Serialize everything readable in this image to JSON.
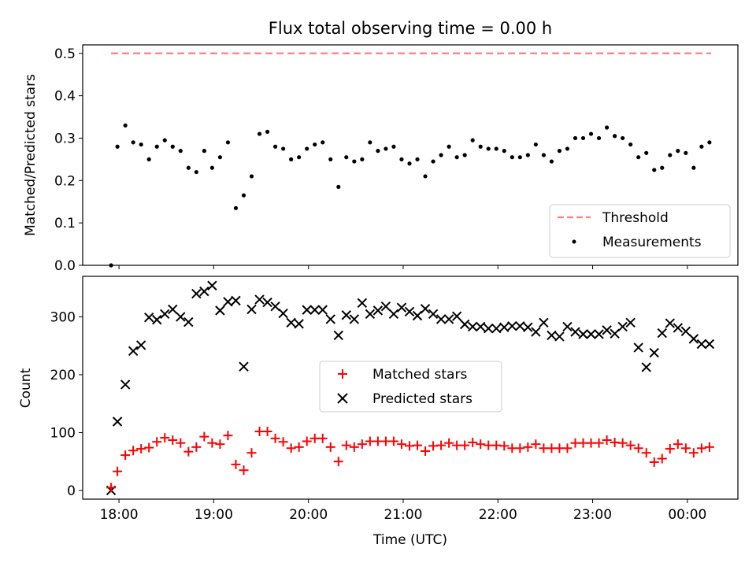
{
  "chart_data": [
    {
      "type": "scatter",
      "title": "Flux total observing time = 0.00 h",
      "xlabel": "",
      "ylabel": "Matched/Predicted stars",
      "xlim": [
        "17:37",
        "00:32"
      ],
      "ylim": [
        0,
        0.52
      ],
      "yticks": [
        0,
        0.1,
        0.2,
        0.3,
        0.4,
        0.5
      ],
      "ytick_labels": [
        "0.0",
        "0.1",
        "0.2",
        "0.3",
        "0.4",
        "0.5"
      ],
      "grid": false,
      "legend_position": "lower-right",
      "threshold": {
        "name": "Threshold",
        "value": 0.5,
        "x": [
          "17:55",
          "00:15"
        ],
        "color": "#ff7f7f"
      },
      "series": [
        {
          "name": "Measurements",
          "color": "#000000",
          "x": [
            "17:55",
            "17:59",
            "18:04",
            "18:09",
            "18:14",
            "18:19",
            "18:24",
            "18:29",
            "18:34",
            "18:39",
            "18:44",
            "18:49",
            "18:54",
            "18:59",
            "19:04",
            "19:09",
            "19:14",
            "19:19",
            "19:24",
            "19:29",
            "19:34",
            "19:39",
            "19:44",
            "19:49",
            "19:54",
            "19:59",
            "20:04",
            "20:09",
            "20:14",
            "20:19",
            "20:24",
            "20:29",
            "20:34",
            "20:39",
            "20:44",
            "20:49",
            "20:54",
            "20:59",
            "21:04",
            "21:09",
            "21:14",
            "21:19",
            "21:24",
            "21:29",
            "21:34",
            "21:39",
            "21:44",
            "21:49",
            "21:54",
            "21:59",
            "22:04",
            "22:09",
            "22:14",
            "22:19",
            "22:24",
            "22:29",
            "22:34",
            "22:39",
            "22:44",
            "22:49",
            "22:54",
            "22:59",
            "23:04",
            "23:09",
            "23:14",
            "23:19",
            "23:24",
            "23:29",
            "23:34",
            "23:39",
            "23:44",
            "23:49",
            "23:54",
            "23:59",
            "00:04",
            "00:09",
            "00:14"
          ],
          "y": [
            0.0,
            0.28,
            0.33,
            0.29,
            0.285,
            0.25,
            0.28,
            0.295,
            0.28,
            0.27,
            0.23,
            0.22,
            0.27,
            0.23,
            0.255,
            0.29,
            0.135,
            0.165,
            0.21,
            0.31,
            0.315,
            0.28,
            0.275,
            0.25,
            0.255,
            0.275,
            0.285,
            0.29,
            0.25,
            0.185,
            0.255,
            0.245,
            0.25,
            0.29,
            0.27,
            0.275,
            0.28,
            0.25,
            0.24,
            0.25,
            0.21,
            0.245,
            0.26,
            0.28,
            0.255,
            0.26,
            0.295,
            0.28,
            0.275,
            0.275,
            0.27,
            0.255,
            0.255,
            0.26,
            0.285,
            0.26,
            0.245,
            0.27,
            0.275,
            0.3,
            0.3,
            0.31,
            0.3,
            0.325,
            0.305,
            0.3,
            0.285,
            0.255,
            0.265,
            0.225,
            0.23,
            0.26,
            0.27,
            0.265,
            0.23,
            0.28,
            0.29
          ]
        }
      ]
    },
    {
      "type": "scatter",
      "title": "",
      "xlabel": "Time (UTC)",
      "ylabel": "Count",
      "xlim": [
        "17:37",
        "00:32"
      ],
      "ylim": [
        -15,
        370
      ],
      "yticks": [
        0,
        100,
        200,
        300
      ],
      "ytick_labels": [
        "0",
        "100",
        "200",
        "300"
      ],
      "xticks": [
        "18:00",
        "19:00",
        "20:00",
        "21:00",
        "22:00",
        "23:00",
        "00:00"
      ],
      "xtick_labels": [
        "18:00",
        "19:00",
        "20:00",
        "21:00",
        "22:00",
        "23:00",
        "00:00"
      ],
      "grid": false,
      "legend_position": "center",
      "series": [
        {
          "name": "Matched stars",
          "color": "#ff0000",
          "marker": "plus",
          "x": [
            "17:55",
            "17:59",
            "18:04",
            "18:09",
            "18:14",
            "18:19",
            "18:24",
            "18:29",
            "18:34",
            "18:39",
            "18:44",
            "18:49",
            "18:54",
            "18:59",
            "19:04",
            "19:09",
            "19:14",
            "19:19",
            "19:24",
            "19:29",
            "19:34",
            "19:39",
            "19:44",
            "19:49",
            "19:54",
            "19:59",
            "20:04",
            "20:09",
            "20:14",
            "20:19",
            "20:24",
            "20:29",
            "20:34",
            "20:39",
            "20:44",
            "20:49",
            "20:54",
            "20:59",
            "21:04",
            "21:09",
            "21:14",
            "21:19",
            "21:24",
            "21:29",
            "21:34",
            "21:39",
            "21:44",
            "21:49",
            "21:54",
            "21:59",
            "22:04",
            "22:09",
            "22:14",
            "22:19",
            "22:24",
            "22:29",
            "22:34",
            "22:39",
            "22:44",
            "22:49",
            "22:54",
            "22:59",
            "23:04",
            "23:09",
            "23:14",
            "23:19",
            "23:24",
            "23:29",
            "23:34",
            "23:39",
            "23:44",
            "23:49",
            "23:54",
            "23:59",
            "00:04",
            "00:09",
            "00:14"
          ],
          "y": [
            5,
            33,
            61,
            69,
            72,
            74,
            84,
            91,
            87,
            82,
            67,
            75,
            93,
            82,
            80,
            95,
            45,
            35,
            65,
            102,
            102,
            90,
            84,
            73,
            75,
            85,
            90,
            90,
            75,
            50,
            78,
            75,
            80,
            85,
            85,
            85,
            85,
            80,
            77,
            78,
            68,
            77,
            78,
            82,
            78,
            78,
            83,
            80,
            78,
            78,
            77,
            73,
            73,
            75,
            80,
            73,
            73,
            73,
            73,
            82,
            82,
            82,
            82,
            87,
            83,
            82,
            78,
            73,
            65,
            49,
            55,
            72,
            80,
            73,
            65,
            73,
            75
          ]
        },
        {
          "name": "Predicted stars",
          "color": "#000000",
          "marker": "x",
          "x": [
            "17:55",
            "17:59",
            "18:04",
            "18:09",
            "18:14",
            "18:19",
            "18:24",
            "18:29",
            "18:34",
            "18:39",
            "18:44",
            "18:49",
            "18:54",
            "18:59",
            "19:04",
            "19:09",
            "19:14",
            "19:19",
            "19:24",
            "19:29",
            "19:34",
            "19:39",
            "19:44",
            "19:49",
            "19:54",
            "19:59",
            "20:04",
            "20:09",
            "20:14",
            "20:19",
            "20:24",
            "20:29",
            "20:34",
            "20:39",
            "20:44",
            "20:49",
            "20:54",
            "20:59",
            "21:04",
            "21:09",
            "21:14",
            "21:19",
            "21:24",
            "21:29",
            "21:34",
            "21:39",
            "21:44",
            "21:49",
            "21:54",
            "21:59",
            "22:04",
            "22:09",
            "22:14",
            "22:19",
            "22:24",
            "22:29",
            "22:34",
            "22:39",
            "22:44",
            "22:49",
            "22:54",
            "22:59",
            "23:04",
            "23:09",
            "23:14",
            "23:19",
            "23:24",
            "23:29",
            "23:34",
            "23:39",
            "23:44",
            "23:49",
            "23:54",
            "23:59",
            "00:04",
            "00:09",
            "00:14"
          ],
          "y": [
            0,
            119,
            183,
            241,
            251,
            299,
            295,
            305,
            313,
            300,
            291,
            340,
            344,
            354,
            311,
            326,
            328,
            214,
            313,
            330,
            325,
            318,
            306,
            290,
            288,
            312,
            312,
            312,
            296,
            268,
            303,
            296,
            324,
            305,
            311,
            318,
            305,
            316,
            309,
            302,
            314,
            305,
            296,
            296,
            301,
            287,
            283,
            283,
            280,
            280,
            282,
            284,
            284,
            282,
            274,
            290,
            268,
            266,
            283,
            274,
            270,
            270,
            270,
            277,
            271,
            283,
            290,
            247,
            213,
            238,
            272,
            289,
            281,
            275,
            262,
            253,
            253
          ]
        }
      ]
    }
  ]
}
